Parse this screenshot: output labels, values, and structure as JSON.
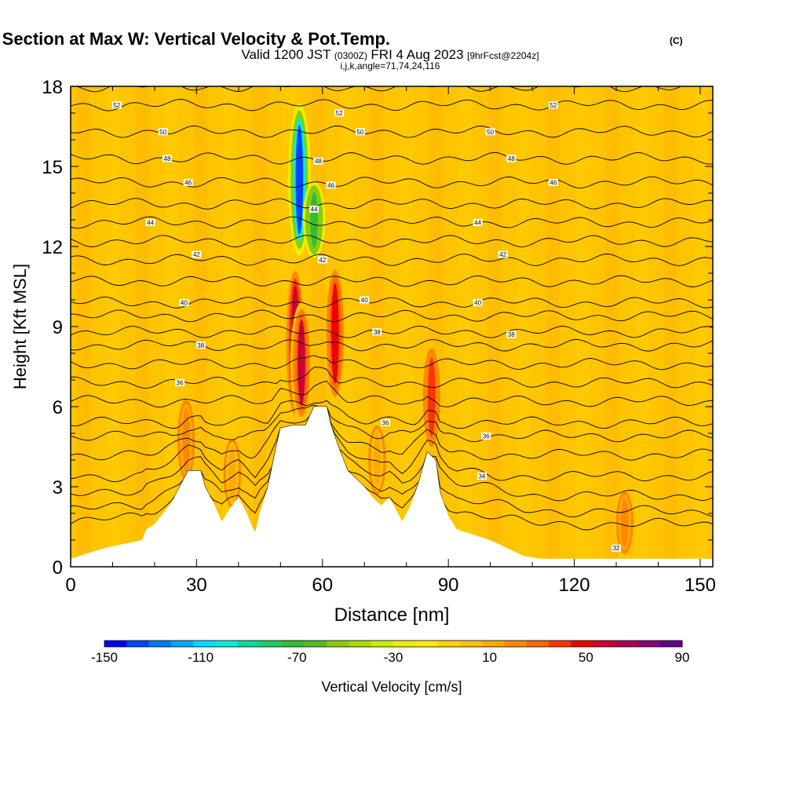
{
  "title": {
    "main": "Wind-Parallel Section at Max W: Vertical Velocity & Pot.Temp.",
    "main_tag": "(C)",
    "valid_a": "Valid 1200 JST",
    "valid_z": "(0300Z)",
    "valid_b": "FRI 4 Aug 2023",
    "valid_fcst": "[9hrFcst@2204z]",
    "indices": "i,j,k,angle=71,74,24,116"
  },
  "chart_data": {
    "type": "heatmap",
    "xlabel": "Distance [nm]",
    "ylabel": "Height [Kft MSL]",
    "xlim": [
      0,
      153
    ],
    "ylim": [
      0,
      18
    ],
    "xticks": [
      0,
      30,
      60,
      90,
      120,
      150
    ],
    "yticks": [
      0,
      3,
      6,
      9,
      12,
      15,
      18
    ],
    "grid": false,
    "colorbar": {
      "label": "Vertical Velocity [cm/s]",
      "placement": "bottom",
      "min": -150,
      "max": 90,
      "step": 10,
      "tick_labels": [
        "-150",
        "-110",
        "-70",
        "-30",
        "10",
        "50",
        "90"
      ],
      "colors": [
        "#0000ff",
        "#0044ff",
        "#0077ff",
        "#00aaff",
        "#00ddff",
        "#00eedd",
        "#00dd99",
        "#22cc66",
        "#33bb33",
        "#55bb22",
        "#88cc11",
        "#aadd00",
        "#ccee00",
        "#eeee00",
        "#ffee00",
        "#ffd400",
        "#ffc400",
        "#ffaa00",
        "#ff8800",
        "#ff6600",
        "#ff3300",
        "#ee0000",
        "#cc0033",
        "#aa0055",
        "#880077",
        "#660088"
      ]
    },
    "terrain_kft": [
      [
        0,
        0.3
      ],
      [
        8,
        0.7
      ],
      [
        17,
        1.0
      ],
      [
        18,
        1.4
      ],
      [
        20,
        1.6
      ],
      [
        22,
        2.0
      ],
      [
        24,
        2.4
      ],
      [
        26,
        3.0
      ],
      [
        28,
        3.6
      ],
      [
        31,
        3.6
      ],
      [
        32,
        3.0
      ],
      [
        34,
        2.4
      ],
      [
        36,
        1.7
      ],
      [
        38,
        2.2
      ],
      [
        40,
        2.6
      ],
      [
        42,
        2.0
      ],
      [
        43,
        1.6
      ],
      [
        44,
        1.3
      ],
      [
        45,
        2.0
      ],
      [
        47,
        3.0
      ],
      [
        49,
        4.5
      ],
      [
        50,
        5.2
      ],
      [
        53,
        5.3
      ],
      [
        56,
        5.3
      ],
      [
        58,
        6.0
      ],
      [
        61,
        6.0
      ],
      [
        62,
        5.3
      ],
      [
        64,
        4.4
      ],
      [
        66,
        3.6
      ],
      [
        68,
        3.3
      ],
      [
        70,
        3.0
      ],
      [
        72,
        2.6
      ],
      [
        74,
        2.3
      ],
      [
        76,
        2.6
      ],
      [
        78,
        2.0
      ],
      [
        79,
        1.7
      ],
      [
        81,
        2.3
      ],
      [
        83,
        3.2
      ],
      [
        85,
        4.3
      ],
      [
        87,
        4.0
      ],
      [
        88,
        2.8
      ],
      [
        90,
        1.9
      ],
      [
        92,
        1.4
      ],
      [
        96,
        1.2
      ],
      [
        100,
        1.0
      ],
      [
        104,
        0.7
      ],
      [
        108,
        0.4
      ],
      [
        112,
        0.3
      ],
      [
        153,
        0.3
      ]
    ],
    "updrafts": [
      {
        "x": 53.5,
        "z0": 5.3,
        "z1": 11.5,
        "w": 75
      },
      {
        "x": 55,
        "z0": 5.3,
        "z1": 10.0,
        "w": 70
      },
      {
        "x": 63,
        "z0": 6.0,
        "z1": 11.5,
        "w": 60
      },
      {
        "x": 86,
        "z0": 4.2,
        "z1": 8.5,
        "w": 50
      },
      {
        "x": 27.5,
        "z0": 3.0,
        "z1": 6.5,
        "w": 35
      },
      {
        "x": 38.5,
        "z0": 2.0,
        "z1": 5.0,
        "w": 25
      },
      {
        "x": 73,
        "z0": 2.5,
        "z1": 5.5,
        "w": 25
      },
      {
        "x": 132,
        "z0": 0.3,
        "z1": 3.0,
        "w": 30
      }
    ],
    "downdrafts": [
      {
        "x": 54.5,
        "z0": 11.5,
        "z1": 17.5,
        "w": -140
      },
      {
        "x": 58,
        "z0": 11.5,
        "z1": 14.5,
        "w": -70
      }
    ],
    "theta_contours": [
      {
        "label": "32",
        "z": 0.7,
        "label_x": 130
      },
      {
        "label": "34",
        "z": 3.4,
        "label_x": 98
      },
      {
        "label": "36",
        "z": 4.9,
        "label_x": 99
      },
      {
        "label": "36",
        "z": 5.4,
        "label_x": 75
      },
      {
        "label": "36",
        "z": 6.9,
        "label_x": 26
      },
      {
        "label": "38",
        "z": 8.3,
        "label_x": 31
      },
      {
        "label": "38",
        "z": 8.7,
        "label_x": 105
      },
      {
        "label": "38",
        "z": 8.8,
        "label_x": 73
      },
      {
        "label": "40",
        "z": 9.9,
        "label_x": 27
      },
      {
        "label": "40",
        "z": 9.9,
        "label_x": 97
      },
      {
        "label": "40",
        "z": 10.0,
        "label_x": 70
      },
      {
        "label": "42",
        "z": 11.5,
        "label_x": 60
      },
      {
        "label": "42",
        "z": 11.7,
        "label_x": 30
      },
      {
        "label": "42",
        "z": 11.7,
        "label_x": 103
      },
      {
        "label": "44",
        "z": 12.9,
        "label_x": 19
      },
      {
        "label": "44",
        "z": 12.9,
        "label_x": 97
      },
      {
        "label": "44",
        "z": 13.4,
        "label_x": 58
      },
      {
        "label": "46",
        "z": 14.4,
        "label_x": 28
      },
      {
        "label": "46",
        "z": 14.4,
        "label_x": 115
      },
      {
        "label": "46",
        "z": 14.3,
        "label_x": 62
      },
      {
        "label": "48",
        "z": 15.3,
        "label_x": 23
      },
      {
        "label": "48",
        "z": 15.3,
        "label_x": 105
      },
      {
        "label": "48",
        "z": 15.2,
        "label_x": 59
      },
      {
        "label": "50",
        "z": 16.3,
        "label_x": 22
      },
      {
        "label": "50",
        "z": 16.3,
        "label_x": 100
      },
      {
        "label": "50",
        "z": 16.3,
        "label_x": 69
      },
      {
        "label": "52",
        "z": 17.3,
        "label_x": 11
      },
      {
        "label": "52",
        "z": 17.3,
        "label_x": 115
      },
      {
        "label": "52",
        "z": 17.0,
        "label_x": 64
      }
    ]
  }
}
